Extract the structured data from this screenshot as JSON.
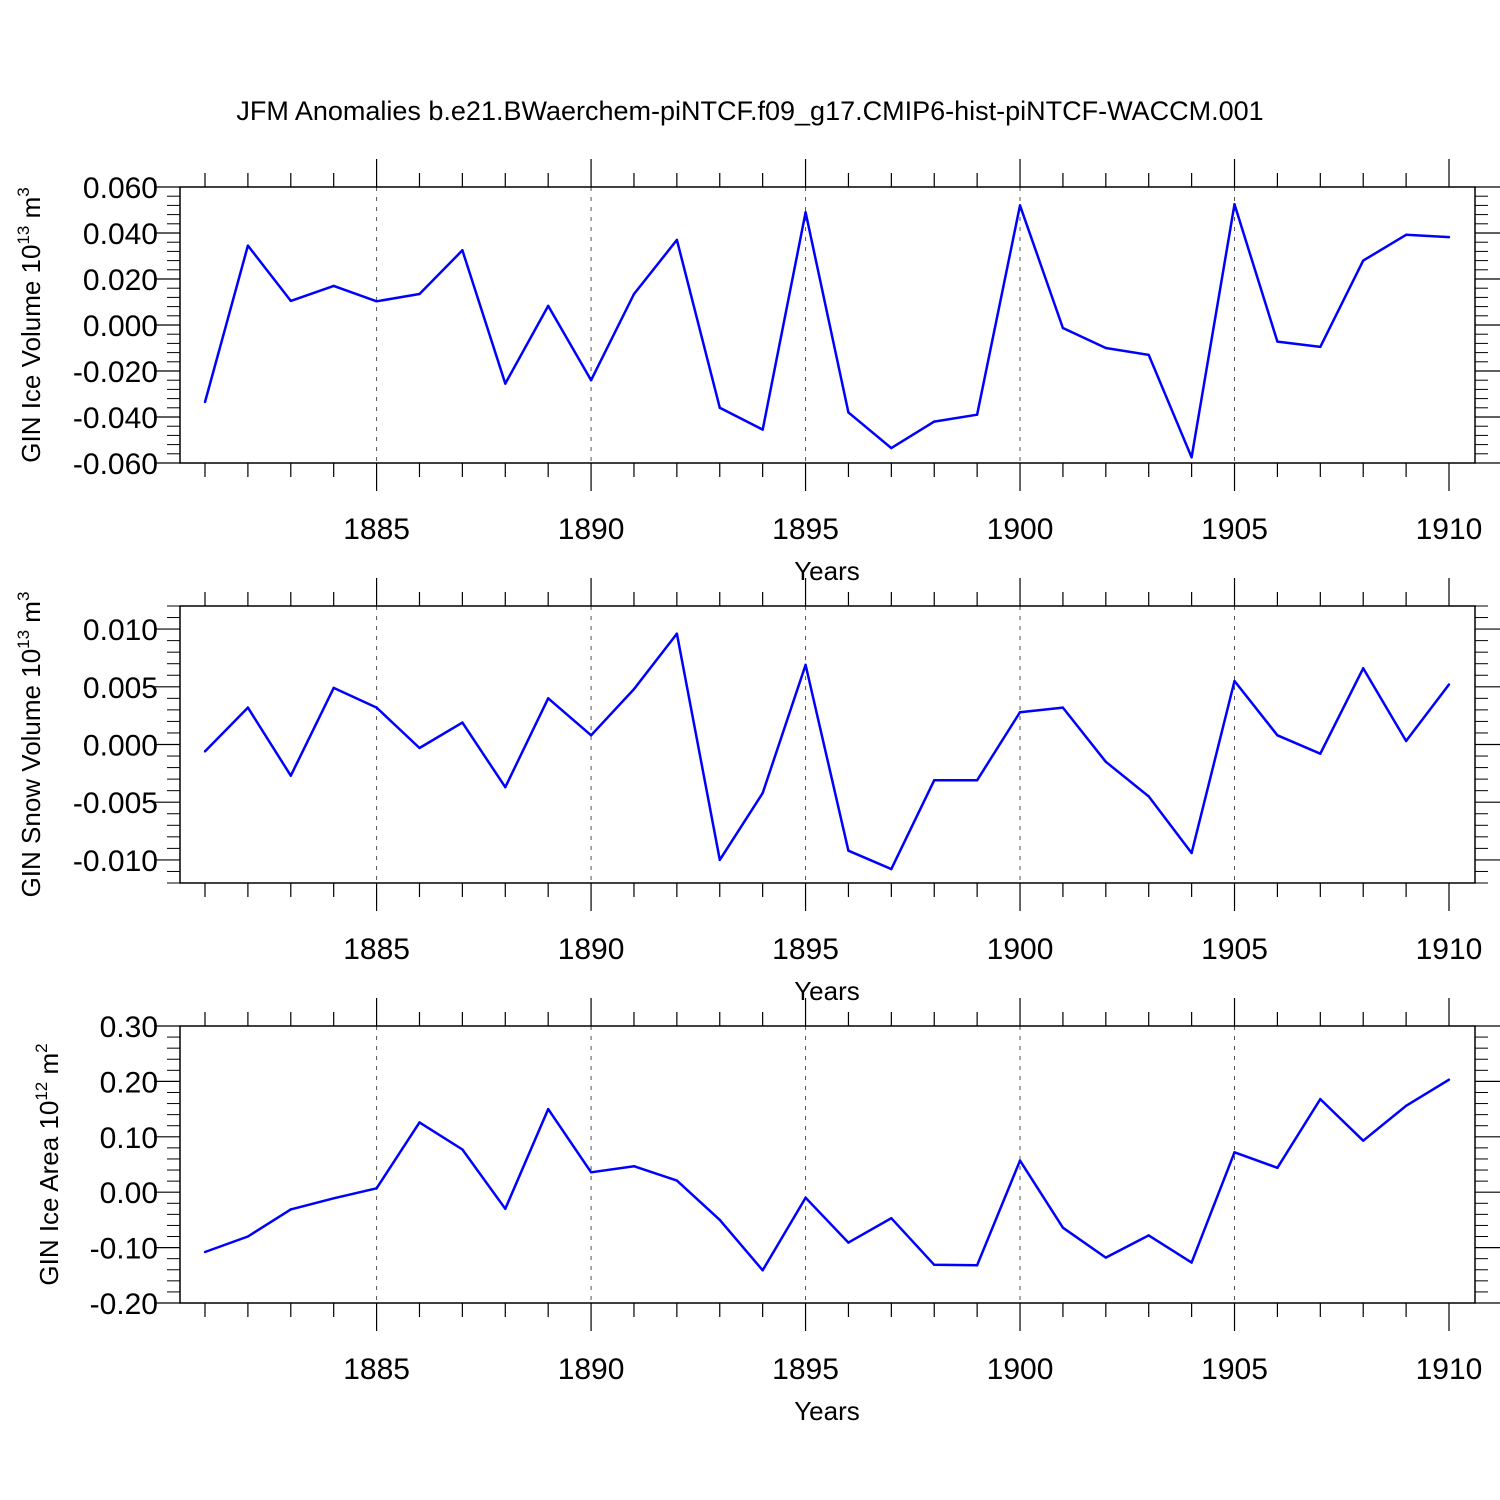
{
  "title": "JFM Anomalies b.e21.BWaerchem-piNTCF.f09_g17.CMIP6-hist-piNTCF-WACCM.001",
  "colors": {
    "line": "#0000ff",
    "axis": "#000000",
    "grid": "#555555"
  },
  "chart_data": [
    {
      "type": "line",
      "ylabel": "GIN Ice Volume 10",
      "ylabel_exp": "13",
      "ylabel_unit": " m",
      "ylabel_unit_exp": "3",
      "xlabel": "Years",
      "xlim": [
        1881,
        1910
      ],
      "ylim": [
        -0.06,
        0.06
      ],
      "yticks": [
        -0.06,
        -0.04,
        -0.02,
        0.0,
        0.02,
        0.04,
        0.06
      ],
      "ytick_labels": [
        "-0.060",
        "-0.040",
        "-0.020",
        "0.000",
        "0.020",
        "0.040",
        "0.060"
      ],
      "xticks": [
        1885,
        1890,
        1895,
        1900,
        1905,
        1910
      ],
      "xtick_labels": [
        "1885",
        "1890",
        "1895",
        "1900",
        "1905",
        "1910"
      ],
      "x": [
        1881,
        1882,
        1883,
        1884,
        1885,
        1886,
        1887,
        1888,
        1889,
        1890,
        1891,
        1892,
        1893,
        1894,
        1895,
        1896,
        1897,
        1898,
        1899,
        1900,
        1901,
        1902,
        1903,
        1904,
        1905,
        1906,
        1907,
        1908,
        1909,
        1910
      ],
      "values": [
        -0.0335,
        0.0345,
        0.0105,
        0.017,
        0.0103,
        0.0135,
        0.0325,
        -0.0255,
        0.0083,
        -0.024,
        0.0135,
        0.037,
        -0.036,
        -0.0455,
        0.049,
        -0.038,
        -0.0535,
        -0.042,
        -0.039,
        0.052,
        -0.0013,
        -0.01,
        -0.013,
        -0.0575,
        0.0525,
        -0.0072,
        -0.0095,
        0.028,
        0.0392,
        0.0382
      ]
    },
    {
      "type": "line",
      "ylabel": "GIN Snow Volume 10",
      "ylabel_exp": "13",
      "ylabel_unit": " m",
      "ylabel_unit_exp": "3",
      "xlabel": "Years",
      "xlim": [
        1881,
        1910
      ],
      "ylim": [
        -0.012,
        0.012
      ],
      "yticks": [
        -0.01,
        -0.005,
        0.0,
        0.005,
        0.01
      ],
      "ytick_labels": [
        "-0.010",
        "-0.005",
        "0.000",
        "0.005",
        "0.010"
      ],
      "xticks": [
        1885,
        1890,
        1895,
        1900,
        1905,
        1910
      ],
      "xtick_labels": [
        "1885",
        "1890",
        "1895",
        "1900",
        "1905",
        "1910"
      ],
      "x": [
        1881,
        1882,
        1883,
        1884,
        1885,
        1886,
        1887,
        1888,
        1889,
        1890,
        1891,
        1892,
        1893,
        1894,
        1895,
        1896,
        1897,
        1898,
        1899,
        1900,
        1901,
        1902,
        1903,
        1904,
        1905,
        1906,
        1907,
        1908,
        1909,
        1910
      ],
      "values": [
        -0.0006,
        0.0032,
        -0.0027,
        0.0049,
        0.0032,
        -0.0003,
        0.0019,
        -0.0037,
        0.004,
        0.0008,
        0.0048,
        0.0096,
        -0.01,
        -0.0042,
        0.0069,
        -0.0092,
        -0.0108,
        -0.0031,
        -0.0031,
        0.0028,
        0.0032,
        -0.0015,
        -0.0045,
        -0.0094,
        0.0055,
        0.0008,
        -0.0008,
        0.0066,
        0.0003,
        0.0052
      ]
    },
    {
      "type": "line",
      "ylabel": "GIN Ice Area 10",
      "ylabel_exp": "12",
      "ylabel_unit": " m",
      "ylabel_unit_exp": "2",
      "xlabel": "Years",
      "xlim": [
        1881,
        1910
      ],
      "ylim": [
        -0.2,
        0.3
      ],
      "yticks": [
        -0.2,
        -0.1,
        0.0,
        0.1,
        0.2,
        0.3
      ],
      "ytick_labels": [
        "-0.20",
        "-0.10",
        "0.00",
        "0.10",
        "0.20",
        "0.30"
      ],
      "xticks": [
        1885,
        1890,
        1895,
        1900,
        1905,
        1910
      ],
      "xtick_labels": [
        "1885",
        "1890",
        "1895",
        "1900",
        "1905",
        "1910"
      ],
      "x": [
        1881,
        1882,
        1883,
        1884,
        1885,
        1886,
        1887,
        1888,
        1889,
        1890,
        1891,
        1892,
        1893,
        1894,
        1895,
        1896,
        1897,
        1898,
        1899,
        1900,
        1901,
        1902,
        1903,
        1904,
        1905,
        1906,
        1907,
        1908,
        1909,
        1910
      ],
      "values": [
        -0.108,
        -0.08,
        -0.031,
        -0.011,
        0.007,
        0.126,
        0.077,
        -0.03,
        0.15,
        0.036,
        0.047,
        0.021,
        -0.05,
        -0.141,
        -0.01,
        -0.091,
        -0.047,
        -0.131,
        -0.132,
        0.057,
        -0.064,
        -0.118,
        -0.078,
        -0.127,
        0.072,
        0.044,
        0.168,
        0.093,
        0.156,
        0.203
      ]
    }
  ]
}
